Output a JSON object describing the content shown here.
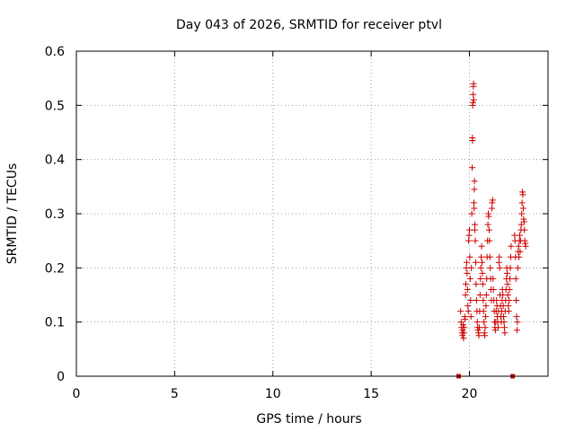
{
  "chart_data": {
    "type": "scatter",
    "title": "Day 043 of 2026, SRMTID for receiver ptvl",
    "xlabel": "GPS time / hours",
    "ylabel": "SRMTID / TECUs",
    "xlim": [
      0,
      24
    ],
    "ylim": [
      0,
      0.6
    ],
    "xticks": [
      0,
      5,
      10,
      15,
      20
    ],
    "xtick_labels": [
      "0",
      "5",
      "10",
      "15",
      "20"
    ],
    "yticks": [
      0,
      0.1,
      0.2,
      0.3,
      0.4,
      0.5,
      0.6
    ],
    "ytick_labels": [
      "0",
      "0.1",
      "0.2",
      "0.3",
      "0.4",
      "0.5",
      "0.6"
    ],
    "grid": true,
    "marker": "+",
    "series_color": "#cc0000",
    "square_markers": [
      {
        "x": 19.45,
        "y": 0
      },
      {
        "x": 22.2,
        "y": 0
      }
    ],
    "series": [
      {
        "name": "SRMTID",
        "points": [
          [
            19.55,
            0.12
          ],
          [
            19.58,
            0.1
          ],
          [
            19.6,
            0.09
          ],
          [
            19.62,
            0.08
          ],
          [
            19.65,
            0.075
          ],
          [
            19.66,
            0.085
          ],
          [
            19.68,
            0.095
          ],
          [
            19.7,
            0.07
          ],
          [
            19.72,
            0.08
          ],
          [
            19.74,
            0.09
          ],
          [
            19.76,
            0.11
          ],
          [
            19.78,
            0.105
          ],
          [
            19.8,
            0.15
          ],
          [
            19.82,
            0.17
          ],
          [
            19.84,
            0.2
          ],
          [
            19.86,
            0.21
          ],
          [
            19.88,
            0.19
          ],
          [
            19.9,
            0.16
          ],
          [
            19.92,
            0.13
          ],
          [
            19.94,
            0.12
          ],
          [
            19.96,
            0.25
          ],
          [
            19.98,
            0.26
          ],
          [
            20.0,
            0.27
          ],
          [
            20.02,
            0.22
          ],
          [
            20.04,
            0.18
          ],
          [
            20.06,
            0.14
          ],
          [
            20.08,
            0.11
          ],
          [
            20.1,
            0.2
          ],
          [
            20.12,
            0.3
          ],
          [
            20.14,
            0.385
          ],
          [
            20.15,
            0.44
          ],
          [
            20.16,
            0.435
          ],
          [
            20.17,
            0.5
          ],
          [
            20.18,
            0.505
          ],
          [
            20.19,
            0.52
          ],
          [
            20.2,
            0.535
          ],
          [
            20.21,
            0.54
          ],
          [
            20.22,
            0.51
          ],
          [
            20.23,
            0.32
          ],
          [
            20.24,
            0.31
          ],
          [
            20.25,
            0.345
          ],
          [
            20.26,
            0.36
          ],
          [
            20.27,
            0.27
          ],
          [
            20.28,
            0.28
          ],
          [
            20.3,
            0.25
          ],
          [
            20.32,
            0.21
          ],
          [
            20.34,
            0.17
          ],
          [
            20.36,
            0.14
          ],
          [
            20.38,
            0.12
          ],
          [
            20.4,
            0.1
          ],
          [
            20.42,
            0.09
          ],
          [
            20.44,
            0.085
          ],
          [
            20.46,
            0.08
          ],
          [
            20.48,
            0.075
          ],
          [
            20.5,
            0.09
          ],
          [
            20.52,
            0.12
          ],
          [
            20.54,
            0.15
          ],
          [
            20.56,
            0.18
          ],
          [
            20.58,
            0.2
          ],
          [
            20.6,
            0.22
          ],
          [
            20.62,
            0.24
          ],
          [
            20.64,
            0.21
          ],
          [
            20.66,
            0.19
          ],
          [
            20.68,
            0.17
          ],
          [
            20.7,
            0.14
          ],
          [
            20.72,
            0.12
          ],
          [
            20.74,
            0.1
          ],
          [
            20.76,
            0.08
          ],
          [
            20.78,
            0.075
          ],
          [
            20.8,
            0.09
          ],
          [
            20.82,
            0.11
          ],
          [
            20.84,
            0.13
          ],
          [
            20.86,
            0.15
          ],
          [
            20.88,
            0.18
          ],
          [
            20.9,
            0.22
          ],
          [
            20.92,
            0.25
          ],
          [
            20.94,
            0.28
          ],
          [
            20.96,
            0.3
          ],
          [
            20.98,
            0.295
          ],
          [
            21.0,
            0.27
          ],
          [
            21.02,
            0.25
          ],
          [
            21.04,
            0.22
          ],
          [
            21.06,
            0.2
          ],
          [
            21.08,
            0.18
          ],
          [
            21.1,
            0.16
          ],
          [
            21.12,
            0.14
          ],
          [
            21.14,
            0.31
          ],
          [
            21.16,
            0.32
          ],
          [
            21.18,
            0.325
          ],
          [
            21.2,
            0.18
          ],
          [
            21.22,
            0.16
          ],
          [
            21.24,
            0.14
          ],
          [
            21.26,
            0.12
          ],
          [
            21.28,
            0.1
          ],
          [
            21.3,
            0.09
          ],
          [
            21.32,
            0.085
          ],
          [
            21.34,
            0.1
          ],
          [
            21.36,
            0.12
          ],
          [
            21.38,
            0.14
          ],
          [
            21.4,
            0.13
          ],
          [
            21.42,
            0.11
          ],
          [
            21.44,
            0.1
          ],
          [
            21.46,
            0.09
          ],
          [
            21.48,
            0.12
          ],
          [
            21.5,
            0.21
          ],
          [
            21.52,
            0.22
          ],
          [
            21.54,
            0.2
          ],
          [
            21.56,
            0.15
          ],
          [
            21.58,
            0.13
          ],
          [
            21.6,
            0.11
          ],
          [
            21.62,
            0.1
          ],
          [
            21.64,
            0.12
          ],
          [
            21.66,
            0.14
          ],
          [
            21.68,
            0.16
          ],
          [
            21.7,
            0.15
          ],
          [
            21.72,
            0.13
          ],
          [
            21.74,
            0.11
          ],
          [
            21.76,
            0.1
          ],
          [
            21.78,
            0.09
          ],
          [
            21.8,
            0.08
          ],
          [
            21.82,
            0.12
          ],
          [
            21.84,
            0.14
          ],
          [
            21.86,
            0.16
          ],
          [
            21.88,
            0.18
          ],
          [
            21.9,
            0.2
          ],
          [
            21.92,
            0.19
          ],
          [
            21.94,
            0.17
          ],
          [
            21.96,
            0.15
          ],
          [
            21.98,
            0.13
          ],
          [
            22.0,
            0.12
          ],
          [
            22.02,
            0.14
          ],
          [
            22.04,
            0.16
          ],
          [
            22.06,
            0.18
          ],
          [
            22.08,
            0.2
          ],
          [
            22.1,
            0.22
          ],
          [
            22.12,
            0.24
          ],
          [
            22.3,
            0.26
          ],
          [
            22.32,
            0.25
          ],
          [
            22.34,
            0.22
          ],
          [
            22.36,
            0.18
          ],
          [
            22.38,
            0.14
          ],
          [
            22.4,
            0.11
          ],
          [
            22.42,
            0.085
          ],
          [
            22.44,
            0.1
          ],
          [
            22.46,
            0.2
          ],
          [
            22.48,
            0.23
          ],
          [
            22.5,
            0.24
          ],
          [
            22.52,
            0.22
          ],
          [
            22.54,
            0.25
          ],
          [
            22.56,
            0.26
          ],
          [
            22.58,
            0.23
          ],
          [
            22.6,
            0.25
          ],
          [
            22.62,
            0.27
          ],
          [
            22.64,
            0.28
          ],
          [
            22.66,
            0.3
          ],
          [
            22.68,
            0.32
          ],
          [
            22.7,
            0.34
          ],
          [
            22.72,
            0.335
          ],
          [
            22.74,
            0.31
          ],
          [
            22.76,
            0.29
          ],
          [
            22.78,
            0.285
          ],
          [
            22.8,
            0.27
          ],
          [
            22.82,
            0.25
          ],
          [
            22.84,
            0.245
          ],
          [
            22.86,
            0.24
          ]
        ]
      }
    ]
  }
}
